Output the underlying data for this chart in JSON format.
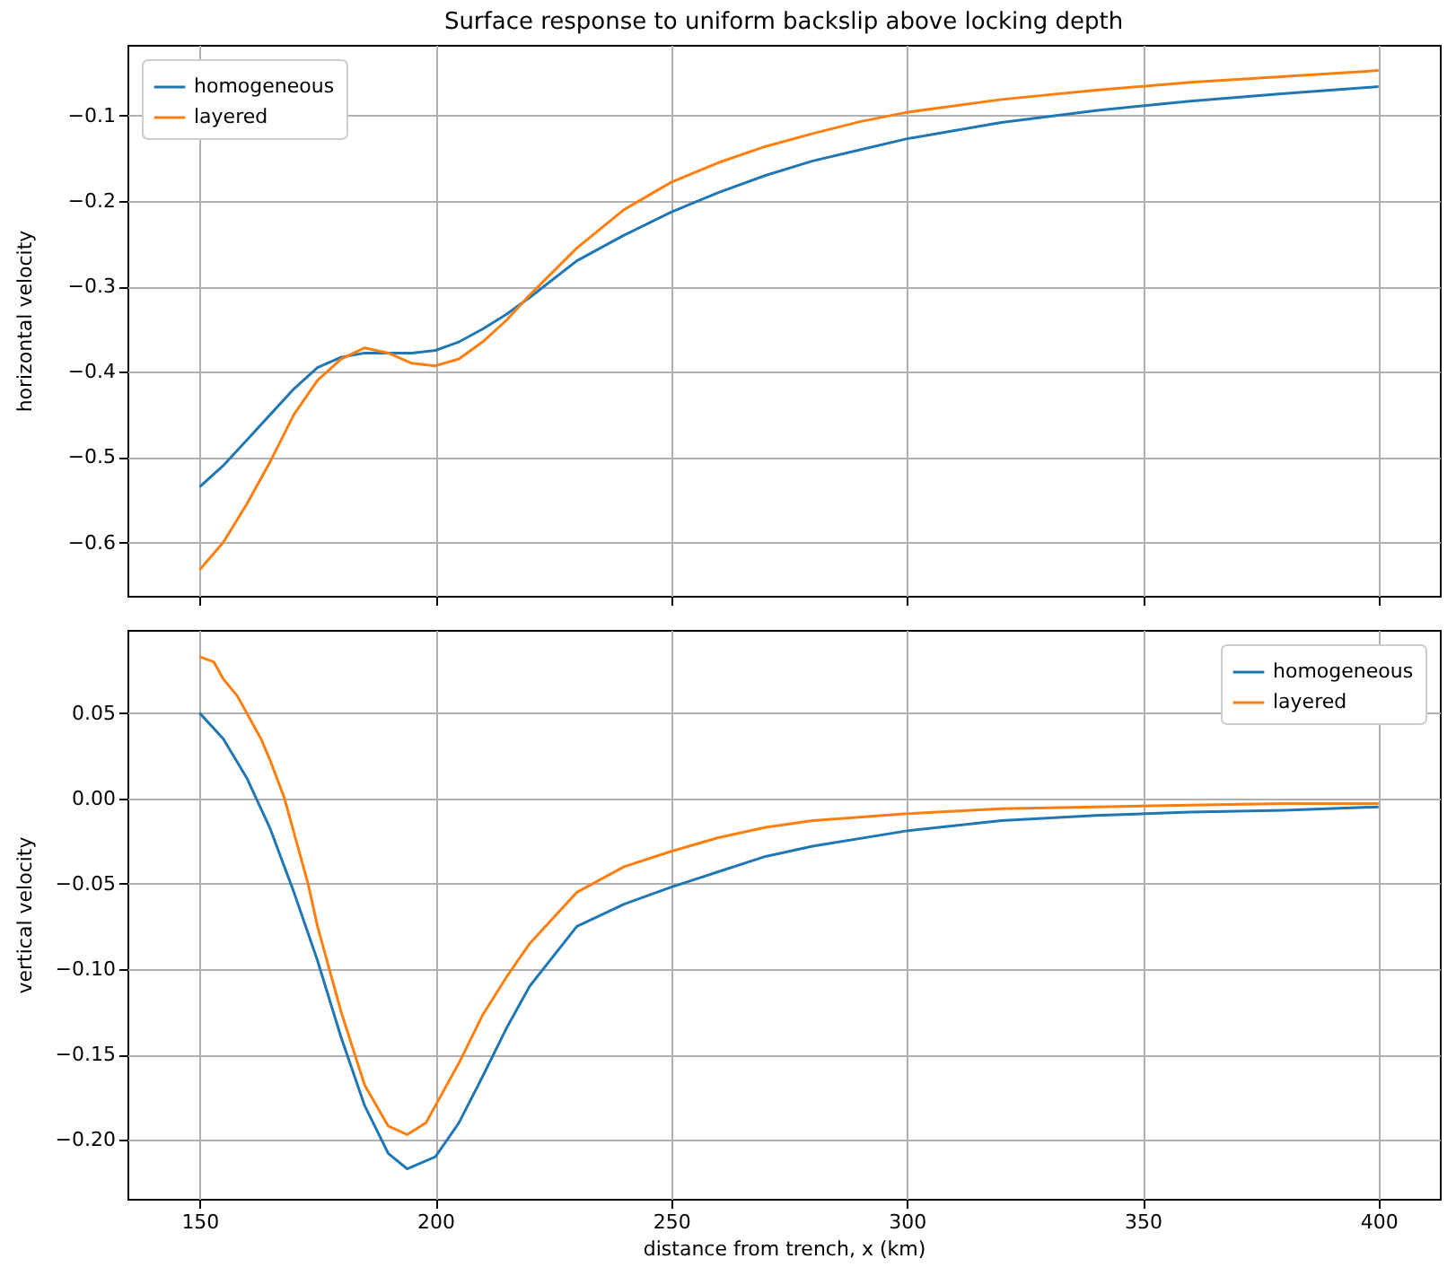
{
  "chart_data": [
    {
      "type": "line",
      "title": "Surface response to uniform backslip above locking depth",
      "ylabel": "horizontal velocity",
      "xlim": [
        134.7,
        413
      ],
      "xticks": [
        150,
        200,
        250,
        300,
        350,
        400
      ],
      "ylim": [
        -0.6625,
        -0.017
      ],
      "yticks": [
        {
          "value": -0.6,
          "label": "−0.6"
        },
        {
          "value": -0.5,
          "label": "−0.5"
        },
        {
          "value": -0.4,
          "label": "−0.4"
        },
        {
          "value": -0.3,
          "label": "−0.3"
        },
        {
          "value": -0.2,
          "label": "−0.2"
        },
        {
          "value": -0.1,
          "label": "−0.1"
        }
      ],
      "tick_labels": "y",
      "grid": true,
      "legend": "top left",
      "series": [
        {
          "name": "homogeneous",
          "color": "#1f77b4",
          "x": [
            150,
            155,
            160,
            165,
            170,
            175,
            180,
            185,
            190,
            195,
            200,
            205,
            210,
            215,
            220,
            230,
            240,
            250,
            260,
            270,
            280,
            290,
            300,
            320,
            340,
            360,
            380,
            400
          ],
          "values": [
            -0.535,
            -0.51,
            -0.48,
            -0.45,
            -0.42,
            -0.395,
            -0.383,
            -0.378,
            -0.378,
            -0.378,
            -0.375,
            -0.365,
            -0.35,
            -0.333,
            -0.313,
            -0.27,
            -0.24,
            -0.213,
            -0.19,
            -0.17,
            -0.153,
            -0.14,
            -0.127,
            -0.108,
            -0.094,
            -0.083,
            -0.074,
            -0.066
          ]
        },
        {
          "name": "layered",
          "color": "#ff7f0e",
          "x": [
            150,
            155,
            160,
            165,
            170,
            175,
            180,
            185,
            190,
            195,
            200,
            205,
            210,
            215,
            220,
            230,
            240,
            250,
            260,
            270,
            280,
            290,
            300,
            320,
            340,
            360,
            380,
            400
          ],
          "values": [
            -0.632,
            -0.6,
            -0.555,
            -0.505,
            -0.45,
            -0.41,
            -0.385,
            -0.372,
            -0.378,
            -0.39,
            -0.393,
            -0.385,
            -0.365,
            -0.34,
            -0.31,
            -0.255,
            -0.21,
            -0.178,
            -0.155,
            -0.136,
            -0.121,
            -0.107,
            -0.096,
            -0.081,
            -0.07,
            -0.061,
            -0.054,
            -0.047
          ]
        }
      ]
    },
    {
      "type": "line",
      "xlabel": "distance from trench, x (km)",
      "ylabel": "vertical velocity",
      "xlim": [
        134.7,
        413
      ],
      "xticks": [
        150,
        200,
        250,
        300,
        350,
        400
      ],
      "ylim": [
        -0.2346,
        0.0987
      ],
      "yticks": [
        {
          "value": -0.2,
          "label": "−0.20"
        },
        {
          "value": -0.15,
          "label": "−0.15"
        },
        {
          "value": -0.1,
          "label": "−0.10"
        },
        {
          "value": -0.05,
          "label": "−0.05"
        },
        {
          "value": 0,
          "label": "0.00"
        },
        {
          "value": 0.05,
          "label": "0.05"
        }
      ],
      "grid": true,
      "legend": "top right",
      "series": [
        {
          "name": "homogeneous",
          "color": "#1f77b4",
          "x": [
            150,
            155,
            160,
            165,
            170,
            175,
            180,
            185,
            190,
            194,
            200,
            205,
            210,
            215,
            220,
            230,
            240,
            250,
            260,
            270,
            280,
            300,
            320,
            340,
            360,
            380,
            400
          ],
          "values": [
            0.05,
            0.035,
            0.012,
            -0.018,
            -0.055,
            -0.095,
            -0.14,
            -0.18,
            -0.208,
            -0.217,
            -0.21,
            -0.19,
            -0.163,
            -0.135,
            -0.11,
            -0.075,
            -0.062,
            -0.052,
            -0.043,
            -0.034,
            -0.028,
            -0.019,
            -0.013,
            -0.01,
            -0.008,
            -0.007,
            -0.005
          ]
        },
        {
          "name": "layered",
          "color": "#ff7f0e",
          "x": [
            150,
            153,
            155,
            158,
            160,
            163,
            165,
            168,
            170,
            173,
            175,
            180,
            185,
            190,
            194,
            198,
            200,
            205,
            210,
            215,
            220,
            230,
            240,
            250,
            260,
            270,
            280,
            300,
            320,
            340,
            360,
            380,
            400
          ],
          "values": [
            0.083,
            0.08,
            0.07,
            0.06,
            0.05,
            0.035,
            0.022,
            0,
            -0.02,
            -0.05,
            -0.075,
            -0.125,
            -0.168,
            -0.192,
            -0.197,
            -0.19,
            -0.18,
            -0.155,
            -0.127,
            -0.105,
            -0.085,
            -0.055,
            -0.04,
            -0.031,
            -0.023,
            -0.017,
            -0.013,
            -0.009,
            -0.006,
            -0.005,
            -0.004,
            -0.003,
            -0.003
          ]
        }
      ]
    }
  ]
}
